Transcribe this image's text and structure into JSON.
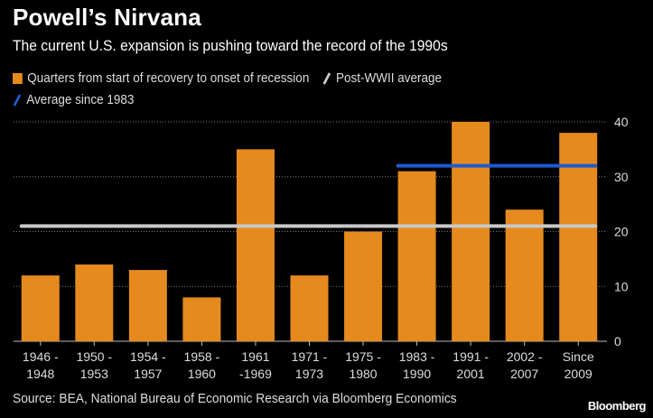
{
  "chart_data": {
    "type": "bar",
    "title": "Powell’s Nirvana",
    "subtitle": "The current U.S. expansion is pushing toward the record of the 1990s",
    "categories": [
      [
        "1946 -",
        "1948"
      ],
      [
        "1950 -",
        "1953"
      ],
      [
        "1954 -",
        "1957"
      ],
      [
        "1958 -",
        "1960"
      ],
      [
        "1961",
        "-1969"
      ],
      [
        "1971 -",
        "1973"
      ],
      [
        "1975 -",
        "1980"
      ],
      [
        "1983 -",
        "1990"
      ],
      [
        "1991 -",
        "2001"
      ],
      [
        "2002 -",
        "2007"
      ],
      [
        "Since",
        "2009"
      ]
    ],
    "values": [
      12,
      14,
      13,
      8,
      35,
      12,
      20,
      31,
      40,
      24,
      38
    ],
    "series_name": "Quarters from start of recovery to onset of recession",
    "reference_lines": [
      {
        "name": "Post-WWII average",
        "value": 21,
        "from_index": 0,
        "to_index": 10,
        "color": "#c8c8c8"
      },
      {
        "name": "Average since 1983",
        "value": 32,
        "from_index": 7,
        "to_index": 10,
        "color": "#1f5bd0"
      }
    ],
    "ylim": [
      0,
      40
    ],
    "yticks": [
      "0",
      "10",
      "20",
      "30",
      "40"
    ],
    "ytick_values": [
      0,
      10,
      20,
      30,
      40
    ],
    "grid": true,
    "legend_placement": "top-left",
    "bar_color": "#e68a1e",
    "source": "Source: BEA, National Bureau of Economic Research via Bloomberg Economics",
    "brand": "Bloomberg"
  }
}
